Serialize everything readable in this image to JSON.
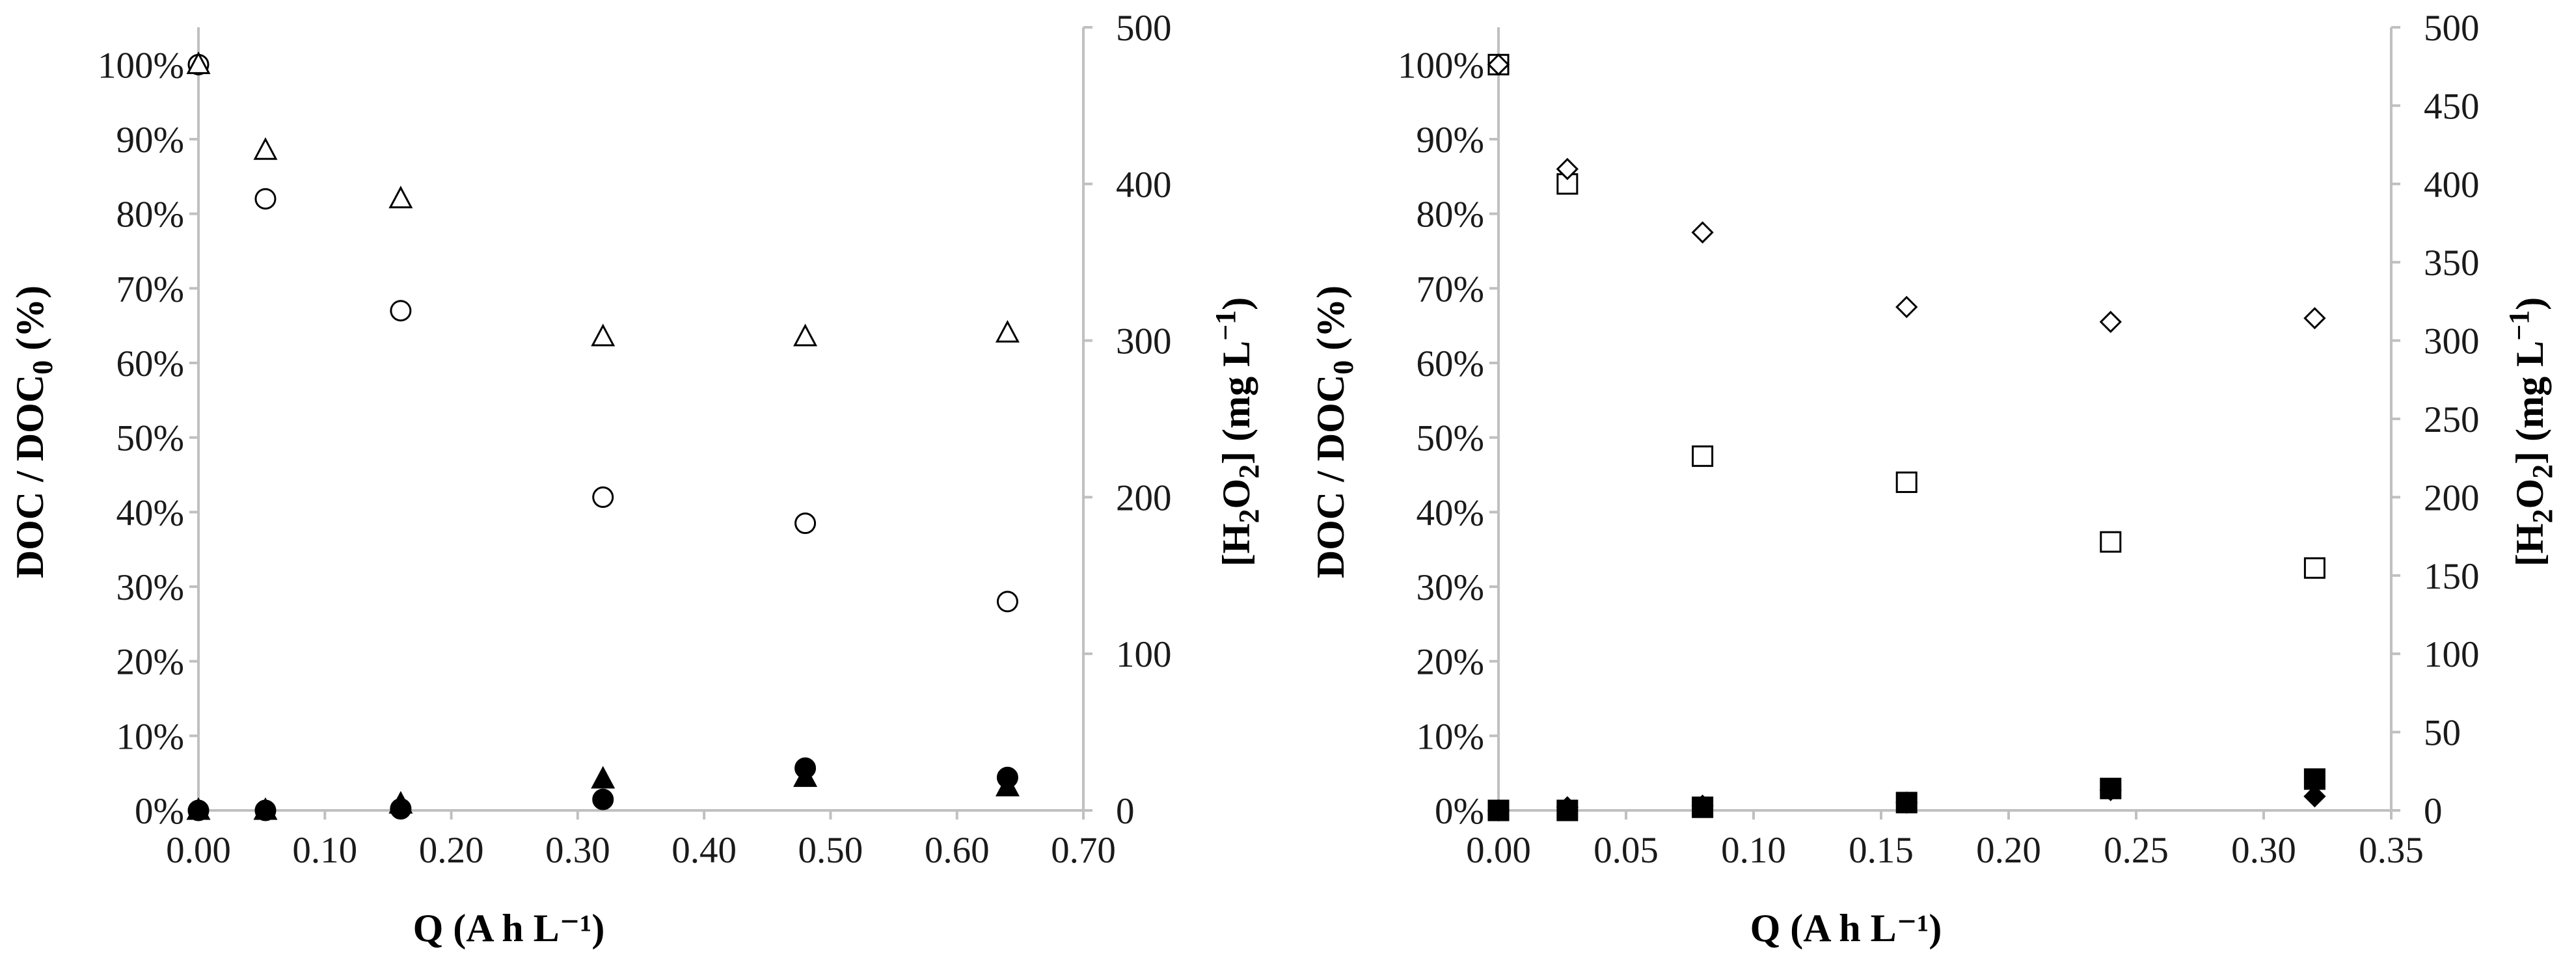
{
  "chart_data": [
    {
      "type": "scatter",
      "xlabel": "Q (A h L⁻¹)",
      "ylabel": "DOC / DOC0 (%)",
      "y2label": "[H2O2] (mg L⁻¹)",
      "xlim": [
        0,
        0.7
      ],
      "xticks": [
        0,
        0.1,
        0.2,
        0.3,
        0.4,
        0.5,
        0.6,
        0.7
      ],
      "xtick_labels": [
        "0.00",
        "0.10",
        "0.20",
        "0.30",
        "0.40",
        "0.50",
        "0.60",
        "0.70"
      ],
      "ylim": [
        0,
        1.05
      ],
      "yticks": [
        0,
        0.1,
        0.2,
        0.3,
        0.4,
        0.5,
        0.6,
        0.7,
        0.8,
        0.9,
        1.0
      ],
      "ytick_labels": [
        "0%",
        "10%",
        "20%",
        "30%",
        "40%",
        "50%",
        "60%",
        "70%",
        "80%",
        "90%",
        "100%"
      ],
      "y2lim": [
        0,
        500
      ],
      "y2ticks": [
        0,
        100,
        200,
        300,
        400,
        500
      ],
      "y2tick_labels": [
        "0",
        "100",
        "200",
        "300",
        "400",
        "500"
      ],
      "grid": false,
      "legend": "none",
      "series": [
        {
          "marker": "circle-open",
          "axis": "left",
          "x": [
            0,
            0.053,
            0.16,
            0.32,
            0.48,
            0.64
          ],
          "y": [
            1.0,
            0.82,
            0.67,
            0.42,
            0.385,
            0.28
          ]
        },
        {
          "marker": "triangle-open",
          "axis": "left",
          "x": [
            0,
            0.053,
            0.16,
            0.32,
            0.48,
            0.64
          ],
          "y": [
            1.0,
            0.885,
            0.82,
            0.635,
            0.635,
            0.64
          ]
        },
        {
          "marker": "circle-filled",
          "axis": "right",
          "x": [
            0,
            0.053,
            0.16,
            0.32,
            0.48,
            0.64
          ],
          "y": [
            0,
            0,
            1,
            7,
            27,
            21
          ]
        },
        {
          "marker": "triangle-filled",
          "axis": "right",
          "x": [
            0,
            0.053,
            0.16,
            0.32,
            0.48,
            0.64
          ],
          "y": [
            0,
            0,
            4,
            20,
            21,
            15
          ]
        }
      ]
    },
    {
      "type": "scatter",
      "xlabel": "Q (A h L⁻¹)",
      "ylabel": "DOC / DOC0 (%)",
      "y2label": "[H2O2] (mg L⁻¹)",
      "xlim": [
        0,
        0.35
      ],
      "xticks": [
        0,
        0.05,
        0.1,
        0.15,
        0.2,
        0.25,
        0.3,
        0.35
      ],
      "xtick_labels": [
        "0.00",
        "0.05",
        "0.10",
        "0.15",
        "0.20",
        "0.25",
        "0.30",
        "0.35"
      ],
      "ylim": [
        0,
        1.05
      ],
      "yticks": [
        0,
        0.1,
        0.2,
        0.3,
        0.4,
        0.5,
        0.6,
        0.7,
        0.8,
        0.9,
        1.0
      ],
      "ytick_labels": [
        "0%",
        "10%",
        "20%",
        "30%",
        "40%",
        "50%",
        "60%",
        "70%",
        "80%",
        "90%",
        "100%"
      ],
      "y2lim": [
        0,
        500
      ],
      "y2ticks": [
        0,
        50,
        100,
        150,
        200,
        250,
        300,
        350,
        400,
        450,
        500
      ],
      "y2tick_labels": [
        "0",
        "50",
        "100",
        "150",
        "200",
        "250",
        "300",
        "350",
        "400",
        "450",
        "500"
      ],
      "grid": false,
      "legend": "none",
      "series": [
        {
          "marker": "square-open",
          "axis": "left",
          "x": [
            0,
            0.027,
            0.08,
            0.16,
            0.24,
            0.32
          ],
          "y": [
            1.0,
            0.84,
            0.475,
            0.44,
            0.36,
            0.325
          ]
        },
        {
          "marker": "diamond-open",
          "axis": "left",
          "x": [
            0,
            0.027,
            0.08,
            0.16,
            0.24,
            0.32
          ],
          "y": [
            1.0,
            0.86,
            0.775,
            0.675,
            0.655,
            0.66
          ]
        },
        {
          "marker": "square-filled",
          "axis": "right",
          "x": [
            0,
            0.027,
            0.08,
            0.16,
            0.24,
            0.32
          ],
          "y": [
            0,
            0,
            2,
            5,
            14,
            20
          ]
        },
        {
          "marker": "diamond-filled",
          "axis": "right",
          "x": [
            0,
            0.027,
            0.08,
            0.16,
            0.24,
            0.32
          ],
          "y": [
            0,
            2,
            3,
            5,
            13,
            9
          ]
        }
      ]
    }
  ]
}
